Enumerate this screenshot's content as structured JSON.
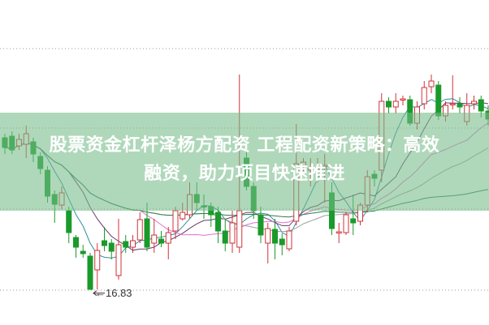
{
  "title": {
    "line1": "股票资金杠杆泽杨方配资 工程配资新策略：高效",
    "line2": "融资，助力项目快速推进"
  },
  "chart_data": {
    "type": "candlestick",
    "title": "",
    "xlabel": "",
    "ylabel": "",
    "ylim": [
      16.83,
      46.6
    ],
    "grid": "horizontal dotted",
    "annotations": [
      {
        "text": "16.83",
        "label": "←16.83",
        "at_candle": 12
      }
    ],
    "colors": {
      "up": "#d0323a",
      "down": "#1a9a2a",
      "ma5": "#2f8fa0",
      "ma10": "#6a3a6a",
      "ma20": "#e070d0",
      "ma30": "#a0a0a0",
      "ma60": "#2e7d4a",
      "grid": "#999999",
      "banner": "#76bc88"
    },
    "moving_averages": [
      5,
      10,
      20,
      30,
      60
    ],
    "candles": [
      [
        35.6,
        34.4,
        36.1,
        33.6
      ],
      [
        35.8,
        34.1,
        36.4,
        33.6
      ],
      [
        34.6,
        35.4,
        36.1,
        34.1
      ],
      [
        34.8,
        36.1,
        37.1,
        33.1
      ],
      [
        35.1,
        33.6,
        35.6,
        32.6
      ],
      [
        33.3,
        31.8,
        33.8,
        31.1
      ],
      [
        31.6,
        28.4,
        32.1,
        27.6
      ],
      [
        28.6,
        27.4,
        29.1,
        25.1
      ],
      [
        27.3,
        28.8,
        29.6,
        26.8
      ],
      [
        26.6,
        23.9,
        27.1,
        22.6
      ],
      [
        23.3,
        22.1,
        23.6,
        20.8
      ],
      [
        21.6,
        21.3,
        22.4,
        20.8
      ],
      [
        21.0,
        16.9,
        21.4,
        16.83
      ],
      [
        19.3,
        21.7,
        22.6,
        16.9
      ],
      [
        22.9,
        22.3,
        24.6,
        21.6
      ],
      [
        22.6,
        21.6,
        23.1,
        20.6
      ],
      [
        18.6,
        22.4,
        25.6,
        18.1
      ],
      [
        22.8,
        22.1,
        23.6,
        21.4
      ],
      [
        22.1,
        22.9,
        23.6,
        21.4
      ],
      [
        23.0,
        25.5,
        26.4,
        22.6
      ],
      [
        25.6,
        22.1,
        27.6,
        21.6
      ],
      [
        22.6,
        23.6,
        25.6,
        21.4
      ],
      [
        23.1,
        22.6,
        24.1,
        22.1
      ],
      [
        22.6,
        23.9,
        24.6,
        20.6
      ],
      [
        24.1,
        26.6,
        27.1,
        23.1
      ],
      [
        25.6,
        26.4,
        27.6,
        25.4
      ],
      [
        26.1,
        28.6,
        30.1,
        25.6
      ],
      [
        28.6,
        27.6,
        30.1,
        26.6
      ],
      [
        27.2,
        27.1,
        28.6,
        25.6
      ],
      [
        27.1,
        26.1,
        27.6,
        24.6
      ],
      [
        26.4,
        24.1,
        27.1,
        22.6
      ],
      [
        24.1,
        22.6,
        25.6,
        21.6
      ],
      [
        22.6,
        25.1,
        26.6,
        21.4
      ],
      [
        22.1,
        26.6,
        43.4,
        21.4
      ],
      [
        33.1,
        29.6,
        34.1,
        29.1
      ],
      [
        29.6,
        26.6,
        30.1,
        25.6
      ],
      [
        26.1,
        23.6,
        27.1,
        22.6
      ],
      [
        22.6,
        24.4,
        25.1,
        20.1
      ],
      [
        24.3,
        22.6,
        25.6,
        20.6
      ],
      [
        23.1,
        22.4,
        23.8,
        21.1
      ],
      [
        21.9,
        24.1,
        24.6,
        21.6
      ],
      [
        25.3,
        32.4,
        37.3,
        24.8
      ],
      [
        32.1,
        32.6,
        33.1,
        31.1
      ],
      [
        31.6,
        31.8,
        33.1,
        29.6
      ],
      [
        31.8,
        31.9,
        33.1,
        30.1
      ],
      [
        32.1,
        32.2,
        33.6,
        27.6
      ],
      [
        28.8,
        24.4,
        30.1,
        23.6
      ],
      [
        23.9,
        24.0,
        25.1,
        22.6
      ],
      [
        23.9,
        26.1,
        26.4,
        23.6
      ],
      [
        25.6,
        25.1,
        28.6,
        23.6
      ],
      [
        25.3,
        27.3,
        27.6,
        24.8
      ],
      [
        27.3,
        30.8,
        31.6,
        26.4
      ],
      [
        31.1,
        30.6,
        31.6,
        29.6
      ],
      [
        31.6,
        40.1,
        41.1,
        30.1
      ],
      [
        40.1,
        39.4,
        40.6,
        38.6
      ],
      [
        39.4,
        40.1,
        41.1,
        38.6
      ],
      [
        40.3,
        40.4,
        40.8,
        39.6
      ],
      [
        40.3,
        37.4,
        40.8,
        37.1
      ],
      [
        37.4,
        39.4,
        40.1,
        36.6
      ],
      [
        39.8,
        41.8,
        42.6,
        39.1
      ],
      [
        41.9,
        42.6,
        43.4,
        41.1
      ],
      [
        42.1,
        38.3,
        42.6,
        37.8
      ],
      [
        38.3,
        39.6,
        40.1,
        37.6
      ],
      [
        39.7,
        39.8,
        43.3,
        39.1
      ],
      [
        39.8,
        39.4,
        40.6,
        38.6
      ],
      [
        37.6,
        39.6,
        41.1,
        37.1
      ],
      [
        39.8,
        40.1,
        40.8,
        39.1
      ],
      [
        40.3,
        38.9,
        40.8,
        38.1
      ],
      [
        38.9,
        37.9,
        39.6,
        37.1
      ]
    ]
  }
}
